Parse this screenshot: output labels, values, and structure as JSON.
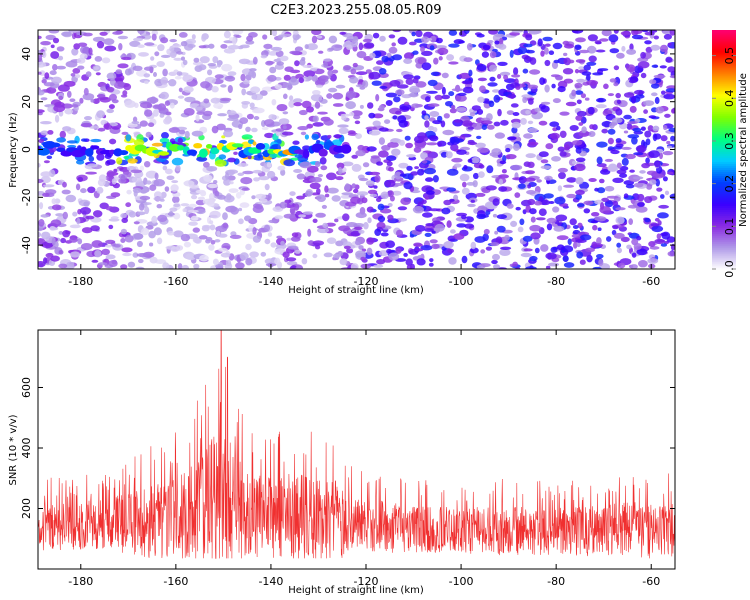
{
  "title": "C2E3.2023.255.08.05.R09",
  "chart_data": [
    {
      "type": "heatmap",
      "xlabel": "Height of straight line (km)",
      "ylabel": "Frequency (Hz)",
      "xlim": [
        -189,
        -55
      ],
      "ylim": [
        -50,
        50
      ],
      "xticks": [
        -180,
        -160,
        -140,
        -120,
        -100,
        -80,
        -60
      ],
      "yticks": [
        -40,
        -20,
        0,
        20,
        40
      ],
      "colorbar": {
        "label": "Normalized spectral amplitude",
        "range": [
          0.0,
          0.56
        ],
        "ticks": [
          0.0,
          0.1,
          0.2,
          0.3,
          0.4,
          0.5
        ],
        "colors": [
          "#ffffff",
          "#b09ae8",
          "#8a2be2",
          "#3a00ff",
          "#0040ff",
          "#00ccff",
          "#00ff80",
          "#80ff00",
          "#ffff00",
          "#ff8000",
          "#ff0000",
          "#ff0070"
        ]
      },
      "features": [
        {
          "x": [
            -189,
            -124
          ],
          "y": 0,
          "amplitude_max": 0.45
        }
      ],
      "grid": false
    },
    {
      "type": "line",
      "xlabel": "Height of straight line (km)",
      "ylabel": "SNR (10 * v/v)",
      "xlim": [
        -189,
        -55
      ],
      "ylim": [
        0,
        790
      ],
      "xticks": [
        -180,
        -160,
        -140,
        -120,
        -100,
        -80,
        -60
      ],
      "yticks": [
        200,
        400,
        600
      ],
      "color": "#f03030",
      "envelope": {
        "x": [
          -189,
          -180,
          -170,
          -165,
          -160,
          -156,
          -153,
          -150,
          -148,
          -145,
          -140,
          -135,
          -130,
          -126,
          -122,
          -115,
          -110,
          -100,
          -90,
          -80,
          -70,
          -60,
          -55
        ],
        "base": [
          130,
          135,
          140,
          150,
          160,
          175,
          185,
          190,
          180,
          165,
          155,
          155,
          150,
          145,
          140,
          130,
          125,
          120,
          118,
          115,
          118,
          120,
          122
        ],
        "peak": [
          300,
          310,
          360,
          470,
          470,
          560,
          660,
          780,
          620,
          480,
          450,
          490,
          450,
          470,
          330,
          320,
          300,
          290,
          300,
          290,
          310,
          340,
          320
        ]
      },
      "grid": false
    }
  ]
}
